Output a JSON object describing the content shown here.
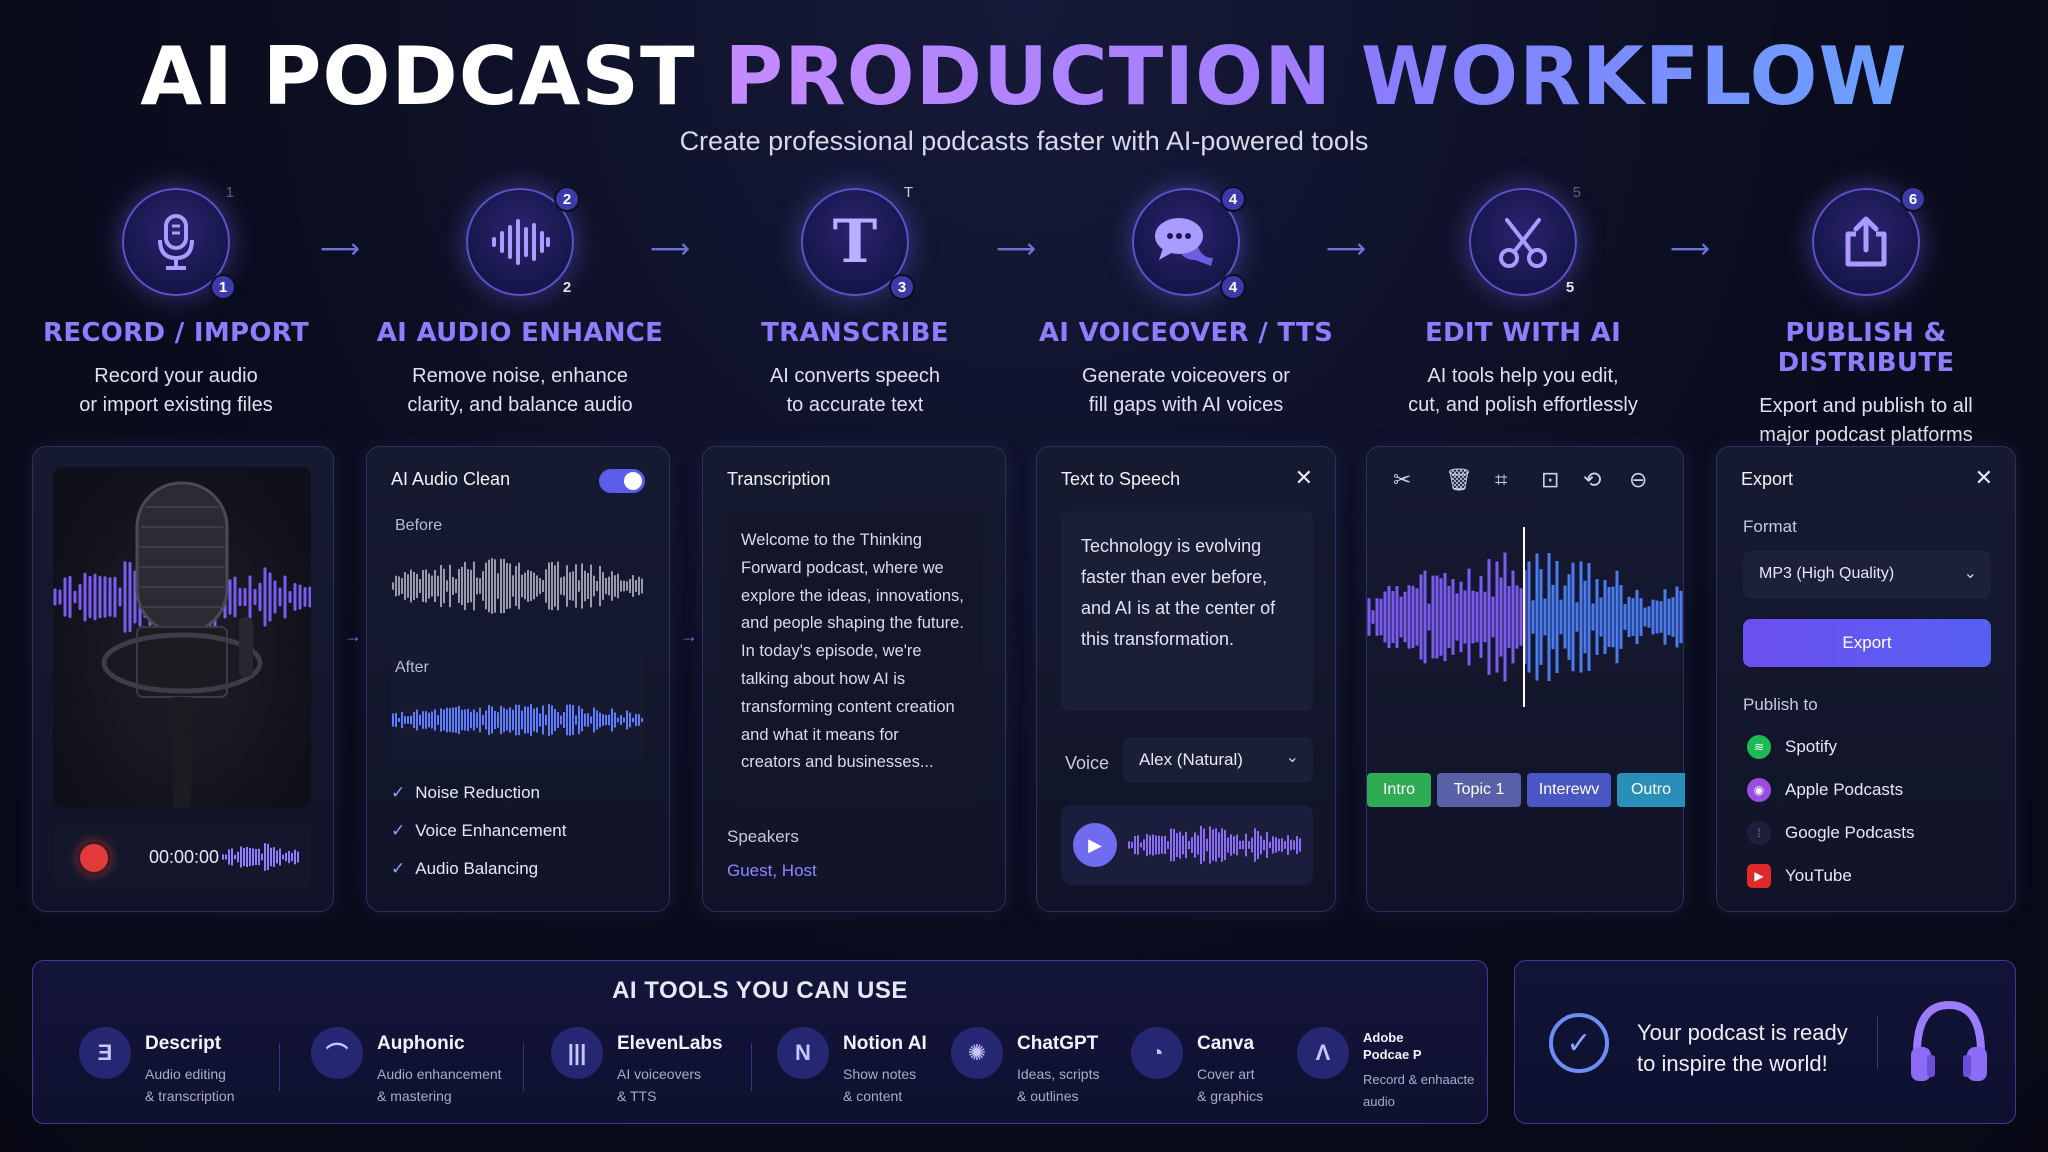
{
  "header": {
    "title_part1": "AI PODCAST",
    "title_part2": "PRODUCTION",
    "title_part3": "WORKFLOW",
    "subtitle": "Create professional podcasts faster with AI-powered tools"
  },
  "steps": [
    {
      "name": "RECORD / IMPORT",
      "desc1": "Record your audio",
      "desc2": "or import existing files",
      "badge": "1",
      "ghost": "1",
      "icon": "microphone-icon"
    },
    {
      "name": "AI AUDIO ENHANCE",
      "desc1": "Remove noise, enhance",
      "desc2": "clarity, and balance audio",
      "badge": "2",
      "badge_top": "2",
      "icon": "soundwave-icon"
    },
    {
      "name": "TRANSCRIBE",
      "desc1": "AI converts speech",
      "desc2": "to accurate text",
      "badge": "3",
      "ghost": "T",
      "icon": "text-t-icon"
    },
    {
      "name": "AI VOICEOVER / TTS",
      "desc1": "Generate voiceovers or",
      "desc2": "fill gaps with AI voices",
      "badge": "4",
      "badge_top": "4",
      "icon": "chat-bubbles-icon"
    },
    {
      "name": "EDIT WITH AI",
      "desc1": "AI tools help you edit,",
      "desc2": "cut, and polish effortlessly",
      "badge": "5",
      "ghost": "5",
      "icon": "scissors-icon"
    },
    {
      "name": "PUBLISH & DISTRIBUTE",
      "desc1": "Export and publish to all",
      "desc2": "major podcast platforms",
      "badge_top": "6",
      "icon": "share-icon"
    }
  ],
  "record_panel": {
    "timer": "00:00:00"
  },
  "enhance_panel": {
    "title": "AI Audio Clean",
    "toggle_on": true,
    "before_label": "Before",
    "after_label": "After",
    "checks": [
      "Noise Reduction",
      "Voice Enhancement",
      "Audio Balancing"
    ]
  },
  "transcription_panel": {
    "title": "Transcription",
    "lines": [
      "Welcome to the Thinking",
      "Forward podcast, where we",
      "explore the ideas, innovations,",
      "and people shaping the future.",
      "In today's episode, we're",
      "talking about how AI is",
      "transforming content creation",
      "and what it means for",
      "creators and businesses..."
    ],
    "speakers_label": "Speakers",
    "speakers_value": "Guest, Host"
  },
  "tts_panel": {
    "title": "Text to Speech",
    "lines": [
      "Technology is evolving",
      "faster than ever before,",
      "and AI is at the center of",
      "this transformation."
    ],
    "voice_label": "Voice",
    "voice_value": "Alex (Natural)"
  },
  "edit_panel": {
    "tools": [
      "scissors-icon",
      "trash-icon",
      "crop-icon",
      "trim-icon",
      "loop-icon",
      "split-icon"
    ],
    "segments": [
      {
        "label": "Intro",
        "color": "#2faa55"
      },
      {
        "label": "Topic 1",
        "color": "#5a60a8"
      },
      {
        "label": "Interewv",
        "color": "#4a56c4"
      },
      {
        "label": "Outro",
        "color": "#2a8fb8"
      }
    ]
  },
  "export_panel": {
    "title": "Export",
    "format_label": "Format",
    "format_value": "MP3 (High Quality)",
    "export_button": "Export",
    "publish_label": "Publish to",
    "platforms": [
      {
        "name": "Spotify",
        "color": "#1db954"
      },
      {
        "name": "Apple Podcasts",
        "color": "#9b4de0"
      },
      {
        "name": "Google Podcasts",
        "color": "#4a6be0"
      },
      {
        "name": "YouTube",
        "color": "#e02a2a"
      }
    ]
  },
  "tools_section": {
    "title": "AI TOOLS YOU CAN USE",
    "tools": [
      {
        "name": "Descript",
        "desc1": "Audio editing",
        "desc2": "& transcription"
      },
      {
        "name": "Auphonic",
        "desc1": "Audio enhancement",
        "desc2": "& mastering"
      },
      {
        "name": "ElevenLabs",
        "desc1": "AI voiceovers",
        "desc2": "& TTS"
      },
      {
        "name": "Notion AI",
        "desc1": "Show notes",
        "desc2": "& content"
      },
      {
        "name": "ChatGPT",
        "desc1": "Ideas, scripts",
        "desc2": "& outlines"
      },
      {
        "name": "Canva",
        "desc1": "Cover art",
        "desc2": "& graphics"
      },
      {
        "name1": "Adobe",
        "name2": "Podcae P",
        "desc1": "Record & enhaacte",
        "desc2": "audio"
      }
    ]
  },
  "ready_panel": {
    "line1": "Your podcast is ready",
    "line2": "to inspire the world!"
  }
}
